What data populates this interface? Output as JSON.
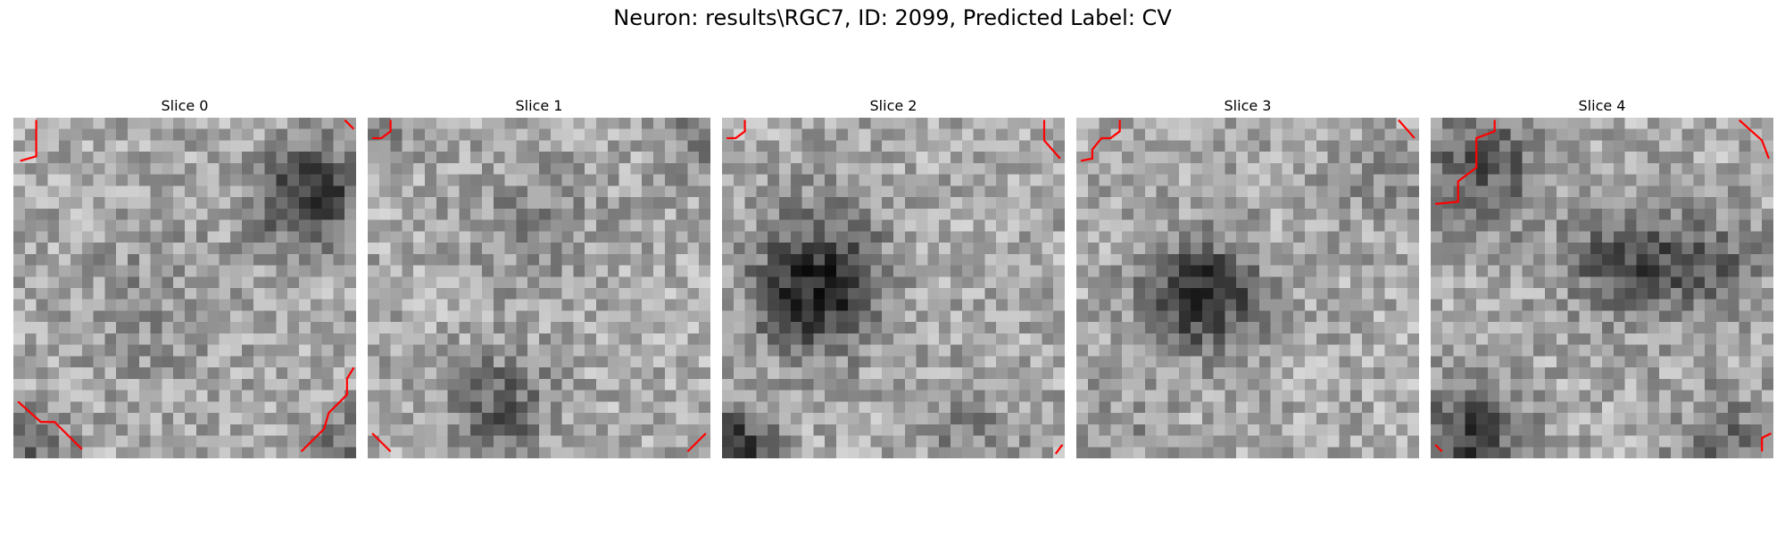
{
  "figure": {
    "title": "Neuron: results\\RGC7, ID: 2099, Predicted Label: CV"
  },
  "slices": [
    {
      "title": "Slice 0"
    },
    {
      "title": "Slice 1"
    },
    {
      "title": "Slice 2"
    },
    {
      "title": "Slice 3"
    },
    {
      "title": "Slice 4"
    }
  ],
  "colors": {
    "contour": "#ff0000",
    "background": "#ffffff"
  }
}
